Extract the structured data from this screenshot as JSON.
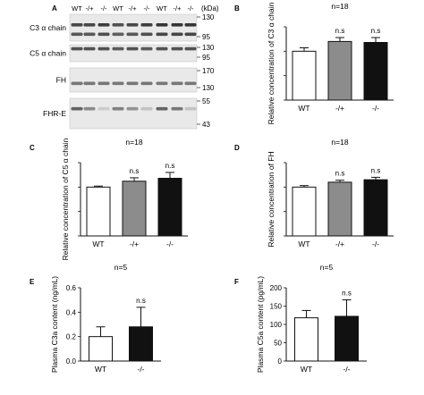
{
  "blot": {
    "panel_letter": "A",
    "lanes": [
      "WT",
      "-/+",
      "-/-",
      "WT",
      "-/+",
      "-/-",
      "WT",
      "-/+",
      "-/-"
    ],
    "unit": "(kDa)",
    "strips": [
      {
        "label": "C3 α chain",
        "markers": [
          "130",
          "95"
        ]
      },
      {
        "label": "C5 α chain",
        "markers": [
          "130",
          "95"
        ]
      },
      {
        "label": "FH",
        "markers": [
          "170",
          "130"
        ]
      },
      {
        "label": "FHR-E",
        "markers": [
          "55",
          "43"
        ]
      }
    ],
    "colors": {
      "band": "#2b2b2b",
      "background": "#e9e9e9"
    }
  },
  "chart_data": [
    {
      "panel": "B",
      "type": "bar",
      "n_label": "n=18",
      "categories": [
        "WT",
        "-/+",
        "-/-"
      ],
      "values": [
        1.0,
        1.2,
        1.18
      ],
      "errors": [
        0.07,
        0.08,
        0.1
      ],
      "significance": [
        "",
        "n.s",
        "n.s"
      ],
      "colors": [
        "#ffffff",
        "#8c8c8c",
        "#111111"
      ],
      "ylabel": "Relative concentration of C3 α chain",
      "ylim": [
        0,
        1.5
      ]
    },
    {
      "panel": "C",
      "type": "bar",
      "n_label": "n=18",
      "categories": [
        "WT",
        "-/+",
        "-/-"
      ],
      "values": [
        1.0,
        1.12,
        1.18
      ],
      "errors": [
        0.02,
        0.07,
        0.12
      ],
      "significance": [
        "",
        "n.s",
        "n.s"
      ],
      "colors": [
        "#ffffff",
        "#8c8c8c",
        "#111111"
      ],
      "ylabel": "Relative concentration of C5 α chain",
      "ylim": [
        0,
        1.5
      ]
    },
    {
      "panel": "D",
      "type": "bar",
      "n_label": "n=18",
      "categories": [
        "WT",
        "-/+",
        "-/-"
      ],
      "values": [
        1.0,
        1.1,
        1.15
      ],
      "errors": [
        0.03,
        0.04,
        0.05
      ],
      "significance": [
        "",
        "n.s",
        "n.s"
      ],
      "colors": [
        "#ffffff",
        "#8c8c8c",
        "#111111"
      ],
      "ylabel": "Relative concentration of FH",
      "ylim": [
        0,
        1.5
      ]
    },
    {
      "panel": "E",
      "type": "bar",
      "n_label": "n=5",
      "categories": [
        "WT",
        "-/-"
      ],
      "values": [
        0.2,
        0.28
      ],
      "errors": [
        0.08,
        0.16
      ],
      "significance": [
        "",
        "n.s"
      ],
      "colors": [
        "#ffffff",
        "#111111"
      ],
      "ylabel": "Plasma C3a content (ng/mL)",
      "ylim": [
        0.0,
        0.6
      ],
      "yticks": [
        0.0,
        0.2,
        0.4,
        0.6
      ]
    },
    {
      "panel": "F",
      "type": "bar",
      "n_label": "n=5",
      "categories": [
        "WT",
        "-/-"
      ],
      "values": [
        118,
        122
      ],
      "errors": [
        20,
        45
      ],
      "significance": [
        "",
        "n.s"
      ],
      "colors": [
        "#ffffff",
        "#111111"
      ],
      "ylabel": "Plasma C5a content (pg/mL)",
      "ylim": [
        0,
        200
      ],
      "yticks": [
        0,
        50,
        100,
        150,
        200
      ]
    }
  ]
}
